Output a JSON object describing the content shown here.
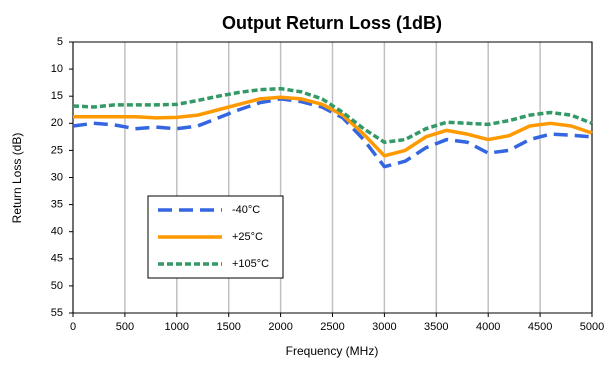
{
  "chart_data": {
    "type": "line",
    "title": "Output Return Loss (1dB)",
    "x_label": "Frequency (MHz)",
    "y_label": "Return Loss (dB)",
    "x": [
      0,
      200,
      400,
      600,
      800,
      1000,
      1200,
      1400,
      1600,
      1800,
      2000,
      2200,
      2400,
      2600,
      2800,
      3000,
      3200,
      3400,
      3600,
      3800,
      4000,
      4200,
      4400,
      4600,
      4800,
      5000
    ],
    "series": [
      {
        "name": "-40°C",
        "color": "#3366e0",
        "line_style": "dashed",
        "values": [
          20.5,
          20,
          20.3,
          21,
          20.7,
          21,
          20.5,
          19,
          17.5,
          16.2,
          15.5,
          16,
          17,
          19,
          23,
          28,
          27,
          24.5,
          23,
          23.5,
          25.5,
          25,
          23,
          22,
          22.2,
          22.5
        ]
      },
      {
        "name": "+25°C",
        "color": "#ff9900",
        "line_style": "solid",
        "values": [
          18.8,
          18.8,
          18.8,
          18.8,
          19,
          18.9,
          18.5,
          17.5,
          16.5,
          15.5,
          15.2,
          15.5,
          16.5,
          18.5,
          22,
          26,
          25,
          22.5,
          21.3,
          22,
          23,
          22.3,
          20.5,
          20,
          20.5,
          21.8
        ]
      },
      {
        "name": "+105°C",
        "color": "#339966",
        "line_style": "dotted",
        "values": [
          16.8,
          17,
          16.6,
          16.6,
          16.6,
          16.5,
          15.8,
          15,
          14.3,
          13.8,
          13.6,
          14.2,
          15.5,
          18,
          21,
          23.5,
          23,
          21,
          19.8,
          20,
          20.2,
          19.5,
          18.5,
          18,
          18.5,
          20
        ]
      }
    ],
    "xlim": [
      0,
      5000
    ],
    "xticks": [
      0,
      500,
      1000,
      1500,
      2000,
      2500,
      3000,
      3500,
      4000,
      4500,
      5000
    ],
    "ylim": [
      55,
      5
    ],
    "yticks": [
      5,
      10,
      15,
      20,
      25,
      30,
      35,
      40,
      45,
      50,
      55
    ],
    "grid": "x"
  }
}
